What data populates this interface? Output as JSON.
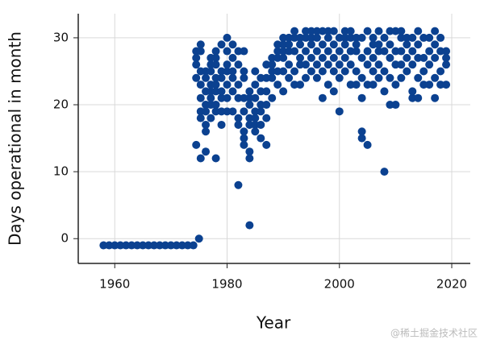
{
  "chart_data": {
    "type": "scatter",
    "xlabel": "Year",
    "ylabel": "Days operational in month",
    "xlim": [
      1953.5,
      2023.3
    ],
    "ylim": [
      -3.7,
      33.6
    ],
    "xticks": [
      1960,
      1980,
      2000,
      2020
    ],
    "yticks": [
      0,
      10,
      20,
      30
    ],
    "grid": true,
    "color": "#0b4190",
    "x": [
      1958,
      1959,
      1960,
      1961,
      1962,
      1963,
      1964,
      1965,
      1966,
      1967,
      1968,
      1969,
      1970,
      1971,
      1972,
      1973,
      1974,
      1975,
      1974.5,
      1974.5,
      1974.5,
      1974.5,
      1974.5,
      1975.3,
      1975.3,
      1975.3,
      1975.3,
      1975.3,
      1975.3,
      1975.3,
      1975.3,
      1976.2,
      1976.2,
      1976.2,
      1976.2,
      1976.2,
      1976.2,
      1976.2,
      1976.2,
      1977.1,
      1977.1,
      1977.1,
      1977.1,
      1977.1,
      1977.1,
      1977.1,
      1977.1,
      1978,
      1978,
      1978,
      1978,
      1978,
      1978,
      1978,
      1978,
      1978,
      1979,
      1979,
      1979,
      1979,
      1979,
      1979,
      1979,
      1980,
      1980,
      1980,
      1980,
      1980,
      1980,
      1980,
      1981,
      1981,
      1981,
      1981,
      1981,
      1981,
      1982,
      1982,
      1982,
      1982,
      1982,
      1982,
      1982,
      1983,
      1983,
      1983,
      1983,
      1983,
      1983,
      1983,
      1983,
      1984,
      1984,
      1984,
      1984,
      1984,
      1984,
      1984,
      1984,
      1985,
      1985,
      1985,
      1985,
      1985,
      1985,
      1985,
      1986,
      1986,
      1986,
      1986,
      1986,
      1986,
      1987,
      1987,
      1987,
      1987,
      1987,
      1987,
      1988,
      1988,
      1988,
      1988,
      1988,
      1989,
      1989,
      1989,
      1989,
      1989,
      1990,
      1990,
      1990,
      1990,
      1990,
      1990,
      1991,
      1991,
      1991,
      1991,
      1991,
      1992,
      1992,
      1992,
      1992,
      1992,
      1993,
      1993,
      1993,
      1993,
      1993,
      1994,
      1994,
      1994,
      1994,
      1994,
      1995,
      1995,
      1995,
      1995,
      1995,
      1996,
      1996,
      1996,
      1996,
      1996,
      1997,
      1997,
      1997,
      1997,
      1997,
      1998,
      1998,
      1998,
      1998,
      1998,
      1999,
      1999,
      1999,
      1999,
      1999,
      2000,
      2000,
      2000,
      2000,
      2000,
      2001,
      2001,
      2001,
      2001,
      2001,
      2002,
      2002,
      2002,
      2002,
      2002,
      2003,
      2003,
      2003,
      2003,
      2003,
      2004,
      2004,
      2004,
      2004,
      2004,
      2004,
      2005,
      2005,
      2005,
      2005,
      2005,
      2006,
      2006,
      2006,
      2006,
      2006,
      2007,
      2007,
      2007,
      2007,
      2007,
      2008,
      2008,
      2008,
      2008,
      2008,
      2009,
      2009,
      2009,
      2009,
      2009,
      2010,
      2010,
      2010,
      2010,
      2010,
      2011,
      2011,
      2011,
      2011,
      2011,
      2012,
      2012,
      2012,
      2012,
      2013,
      2013,
      2013,
      2013,
      2013,
      2014,
      2014,
      2014,
      2014,
      2014,
      2015,
      2015,
      2015,
      2015,
      2016,
      2016,
      2016,
      2016,
      2017,
      2017,
      2017,
      2017,
      2017,
      2018,
      2018,
      2018,
      2018,
      2019,
      2019,
      2019,
      2019
    ],
    "values": [
      -1,
      -1,
      -1,
      -1,
      -1,
      -1,
      -1,
      -1,
      -1,
      -1,
      -1,
      -1,
      -1,
      -1,
      -1,
      -1,
      -1,
      0,
      14,
      24,
      26,
      27,
      28,
      12,
      18,
      19,
      21,
      23,
      25,
      28,
      29,
      13,
      16,
      17,
      19,
      20,
      22,
      24,
      25,
      18,
      20,
      21,
      22,
      23,
      25,
      26,
      27,
      12,
      19,
      20,
      22,
      23,
      24,
      26,
      27,
      28,
      17,
      19,
      21,
      22,
      24,
      25,
      29,
      19,
      21,
      23,
      25,
      26,
      28,
      30,
      19,
      22,
      24,
      25,
      27,
      29,
      8,
      17,
      18,
      21,
      23,
      26,
      28,
      14,
      15,
      16,
      19,
      21,
      24,
      25,
      28,
      2,
      12,
      13,
      17,
      18,
      20,
      21,
      22,
      16,
      17,
      18,
      19,
      21,
      23,
      25,
      15,
      17,
      19,
      20,
      22,
      24,
      14,
      18,
      20,
      22,
      24,
      26,
      21,
      24,
      25,
      26,
      27,
      23,
      25,
      27,
      28,
      29,
      22,
      25,
      27,
      28,
      29,
      30,
      24,
      26,
      28,
      29,
      30,
      23,
      25,
      28,
      30,
      31,
      23,
      26,
      27,
      29,
      30,
      24,
      26,
      28,
      30,
      31,
      25,
      27,
      29,
      30,
      31,
      24,
      26,
      28,
      30,
      31,
      21,
      25,
      27,
      29,
      31,
      23,
      26,
      28,
      30,
      31,
      22,
      25,
      27,
      29,
      31,
      19,
      24,
      26,
      28,
      30,
      25,
      27,
      29,
      30,
      31,
      23,
      26,
      28,
      30,
      31,
      23,
      25,
      28,
      29,
      30,
      15,
      16,
      21,
      24,
      27,
      30,
      14,
      23,
      26,
      28,
      31,
      23,
      25,
      27,
      29,
      30,
      24,
      26,
      28,
      29,
      31,
      10,
      22,
      25,
      28,
      30,
      20,
      24,
      27,
      29,
      31,
      20,
      23,
      26,
      28,
      31,
      24,
      26,
      28,
      30,
      31,
      25,
      27,
      29,
      30,
      21,
      22,
      26,
      28,
      30,
      21,
      24,
      27,
      29,
      31,
      23,
      25,
      27,
      30,
      23,
      26,
      28,
      30,
      21,
      24,
      27,
      29,
      31,
      23,
      25,
      28,
      30,
      23,
      26,
      27,
      28
    ]
  },
  "watermark": "@稀土掘金技术社区"
}
